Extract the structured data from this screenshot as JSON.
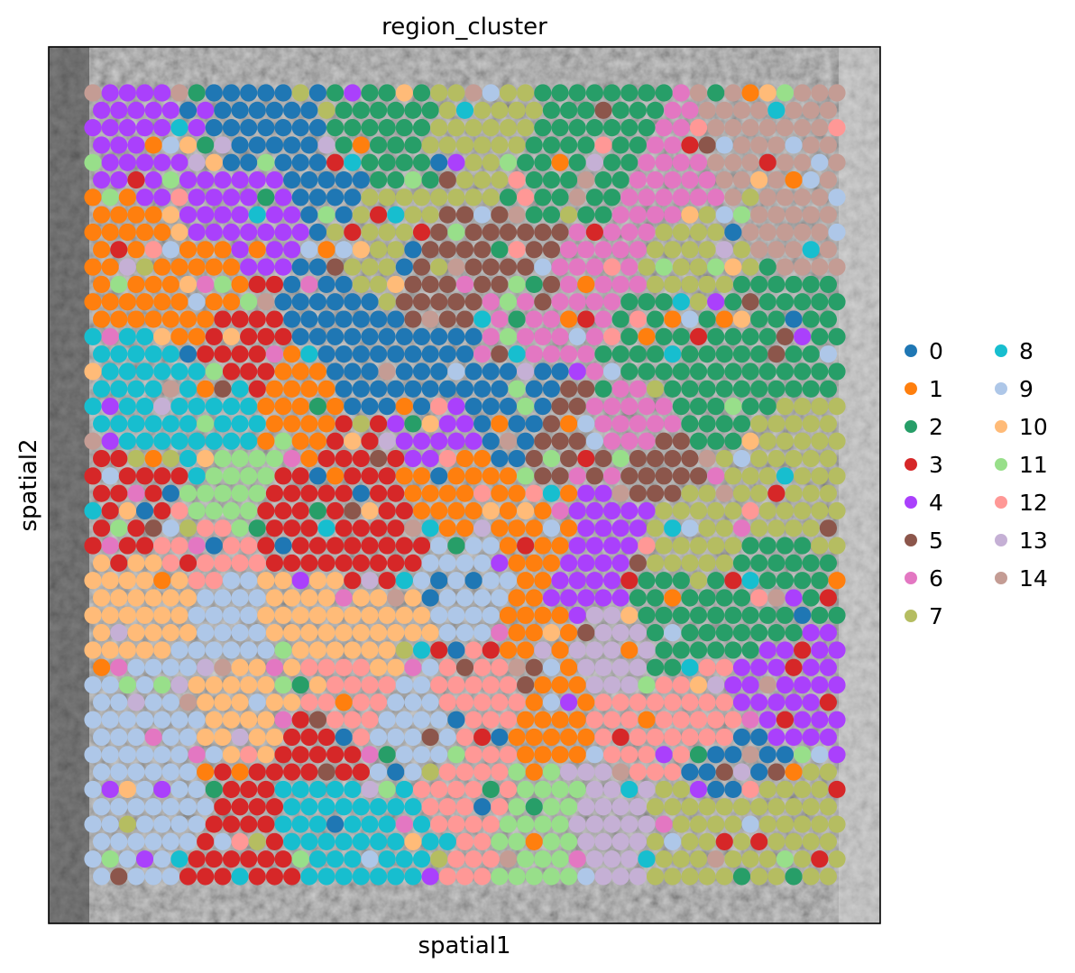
{
  "chart_data": {
    "type": "scatter",
    "title": "region_cluster",
    "xlabel": "spatial1",
    "ylabel": "spatial2",
    "background": "grayscale tissue histology image",
    "grid": false,
    "legend": {
      "placement": "right",
      "columns": 2,
      "categories": [
        "0",
        "1",
        "2",
        "3",
        "4",
        "5",
        "6",
        "7",
        "8",
        "9",
        "10",
        "11",
        "12",
        "13",
        "14"
      ],
      "colors": [
        "#1f77b4",
        "#ff7f0e",
        "#279e68",
        "#d62728",
        "#aa40fc",
        "#8c564b",
        "#e377c2",
        "#b5bd61",
        "#17becf",
        "#aec7e8",
        "#ffbb78",
        "#98df8a",
        "#ff9896",
        "#c5b0d5",
        "#c49c94"
      ]
    },
    "spot_grid": {
      "rows": 46,
      "cols": 44,
      "hex_offset": true
    }
  }
}
